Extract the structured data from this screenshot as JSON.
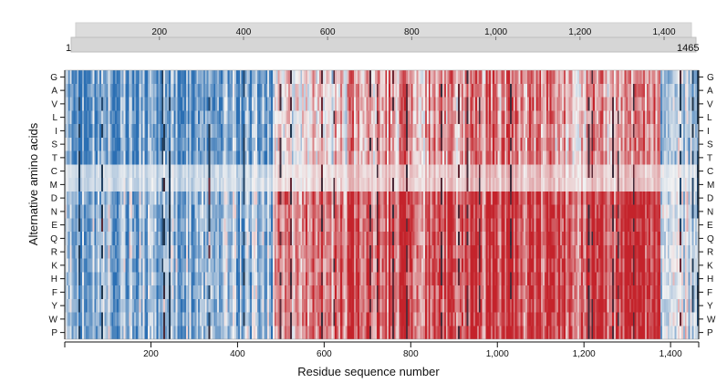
{
  "chart_data": {
    "type": "heatmap",
    "xlabel": "Residue sequence number",
    "ylabel": "Alternative amino acids",
    "x_range": [
      1,
      1465
    ],
    "x_ticks": [
      200,
      400,
      600,
      800,
      1000,
      1200,
      1400
    ],
    "x_tick_labels": [
      "200",
      "400",
      "600",
      "800",
      "1,000",
      "1,200",
      "1,400"
    ],
    "overview": {
      "start_label": "1",
      "end_label": "1465",
      "tick_labels": [
        "200",
        "400",
        "600",
        "800",
        "1,000",
        "1,200",
        "1,400"
      ]
    },
    "rows": [
      "G",
      "A",
      "V",
      "L",
      "I",
      "S",
      "T",
      "C",
      "M",
      "D",
      "N",
      "E",
      "Q",
      "R",
      "K",
      "H",
      "F",
      "Y",
      "W",
      "P"
    ],
    "colormap": {
      "low": "#2b6fb3",
      "mid": "#f2f2f2",
      "high": "#c4232b",
      "dark": "#1f2d3d"
    },
    "score_profile": {
      "description": "approximate mean tendency per residue region (positive = red, negative = blue)",
      "segments": [
        {
          "from": 1,
          "to": 480,
          "hydrophobic_rows": -0.65,
          "polar_rows": -0.45
        },
        {
          "from": 480,
          "to": 650,
          "hydrophobic_rows": 0.1,
          "polar_rows": 0.55
        },
        {
          "from": 650,
          "to": 940,
          "hydrophobic_rows": 0.4,
          "polar_rows": 0.75
        },
        {
          "from": 940,
          "to": 1130,
          "hydrophobic_rows": 0.55,
          "polar_rows": 0.85
        },
        {
          "from": 1130,
          "to": 1375,
          "hydrophobic_rows": 0.35,
          "polar_rows": 0.8
        },
        {
          "from": 1375,
          "to": 1465,
          "hydrophobic_rows": -0.4,
          "polar_rows": -0.2
        }
      ]
    }
  }
}
